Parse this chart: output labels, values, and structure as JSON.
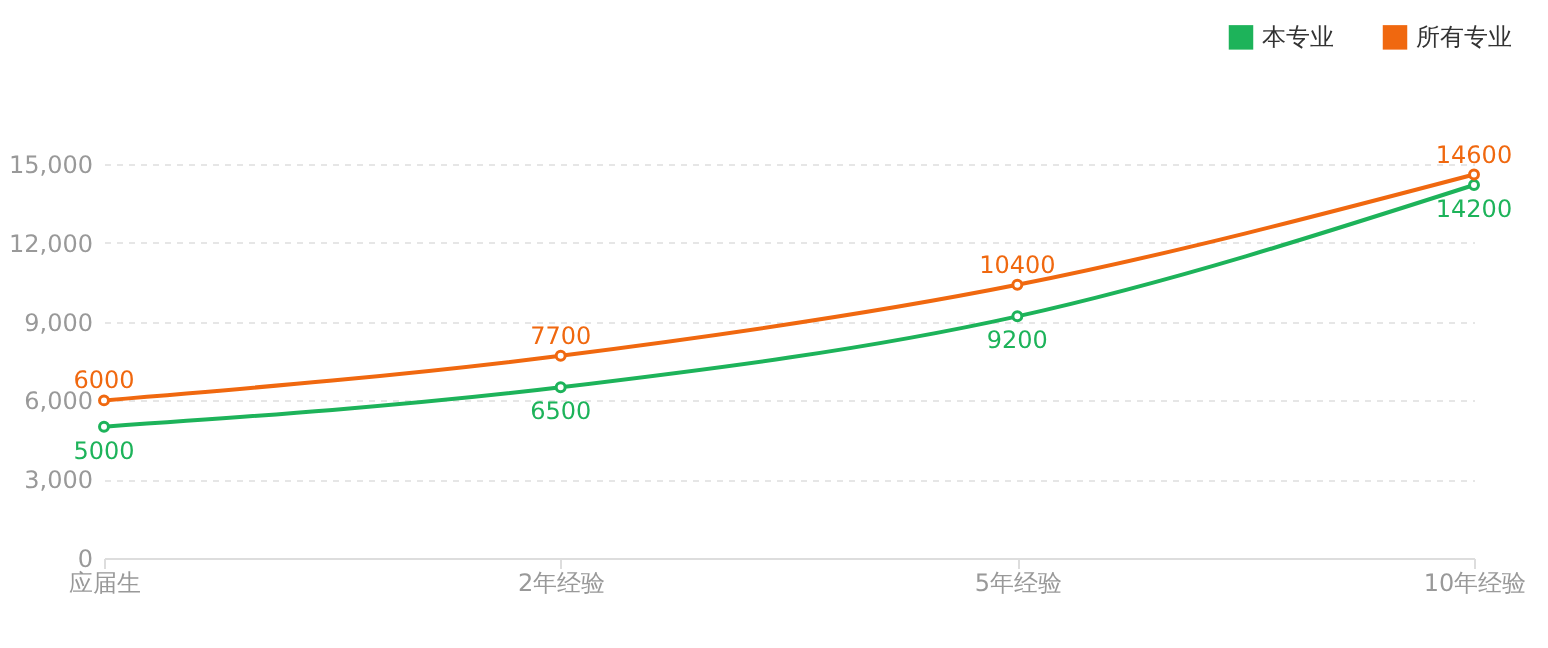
{
  "chart_data": {
    "type": "line",
    "categories": [
      "应届生",
      "2年经验",
      "5年经验",
      "10年经验"
    ],
    "series": [
      {
        "name": "本专业",
        "color": "#1db35a",
        "values": [
          5000,
          6500,
          9200,
          14200
        ]
      },
      {
        "name": "所有专业",
        "color": "#f0680f",
        "values": [
          6000,
          7700,
          10400,
          14600
        ]
      }
    ],
    "ylim": [
      0,
      15000
    ],
    "yticks": [
      0,
      {
        "value": 3000,
        "label": "3,000"
      },
      {
        "value": 6000,
        "label": "6,000"
      },
      {
        "value": 9000,
        "label": "9,000"
      },
      {
        "value": 12000,
        "label": "12,000"
      },
      {
        "value": 15000,
        "label": "15,000"
      }
    ],
    "grid": "y",
    "legend": "top right",
    "marker": "circle",
    "line_style": "solid",
    "data_labels": true
  }
}
